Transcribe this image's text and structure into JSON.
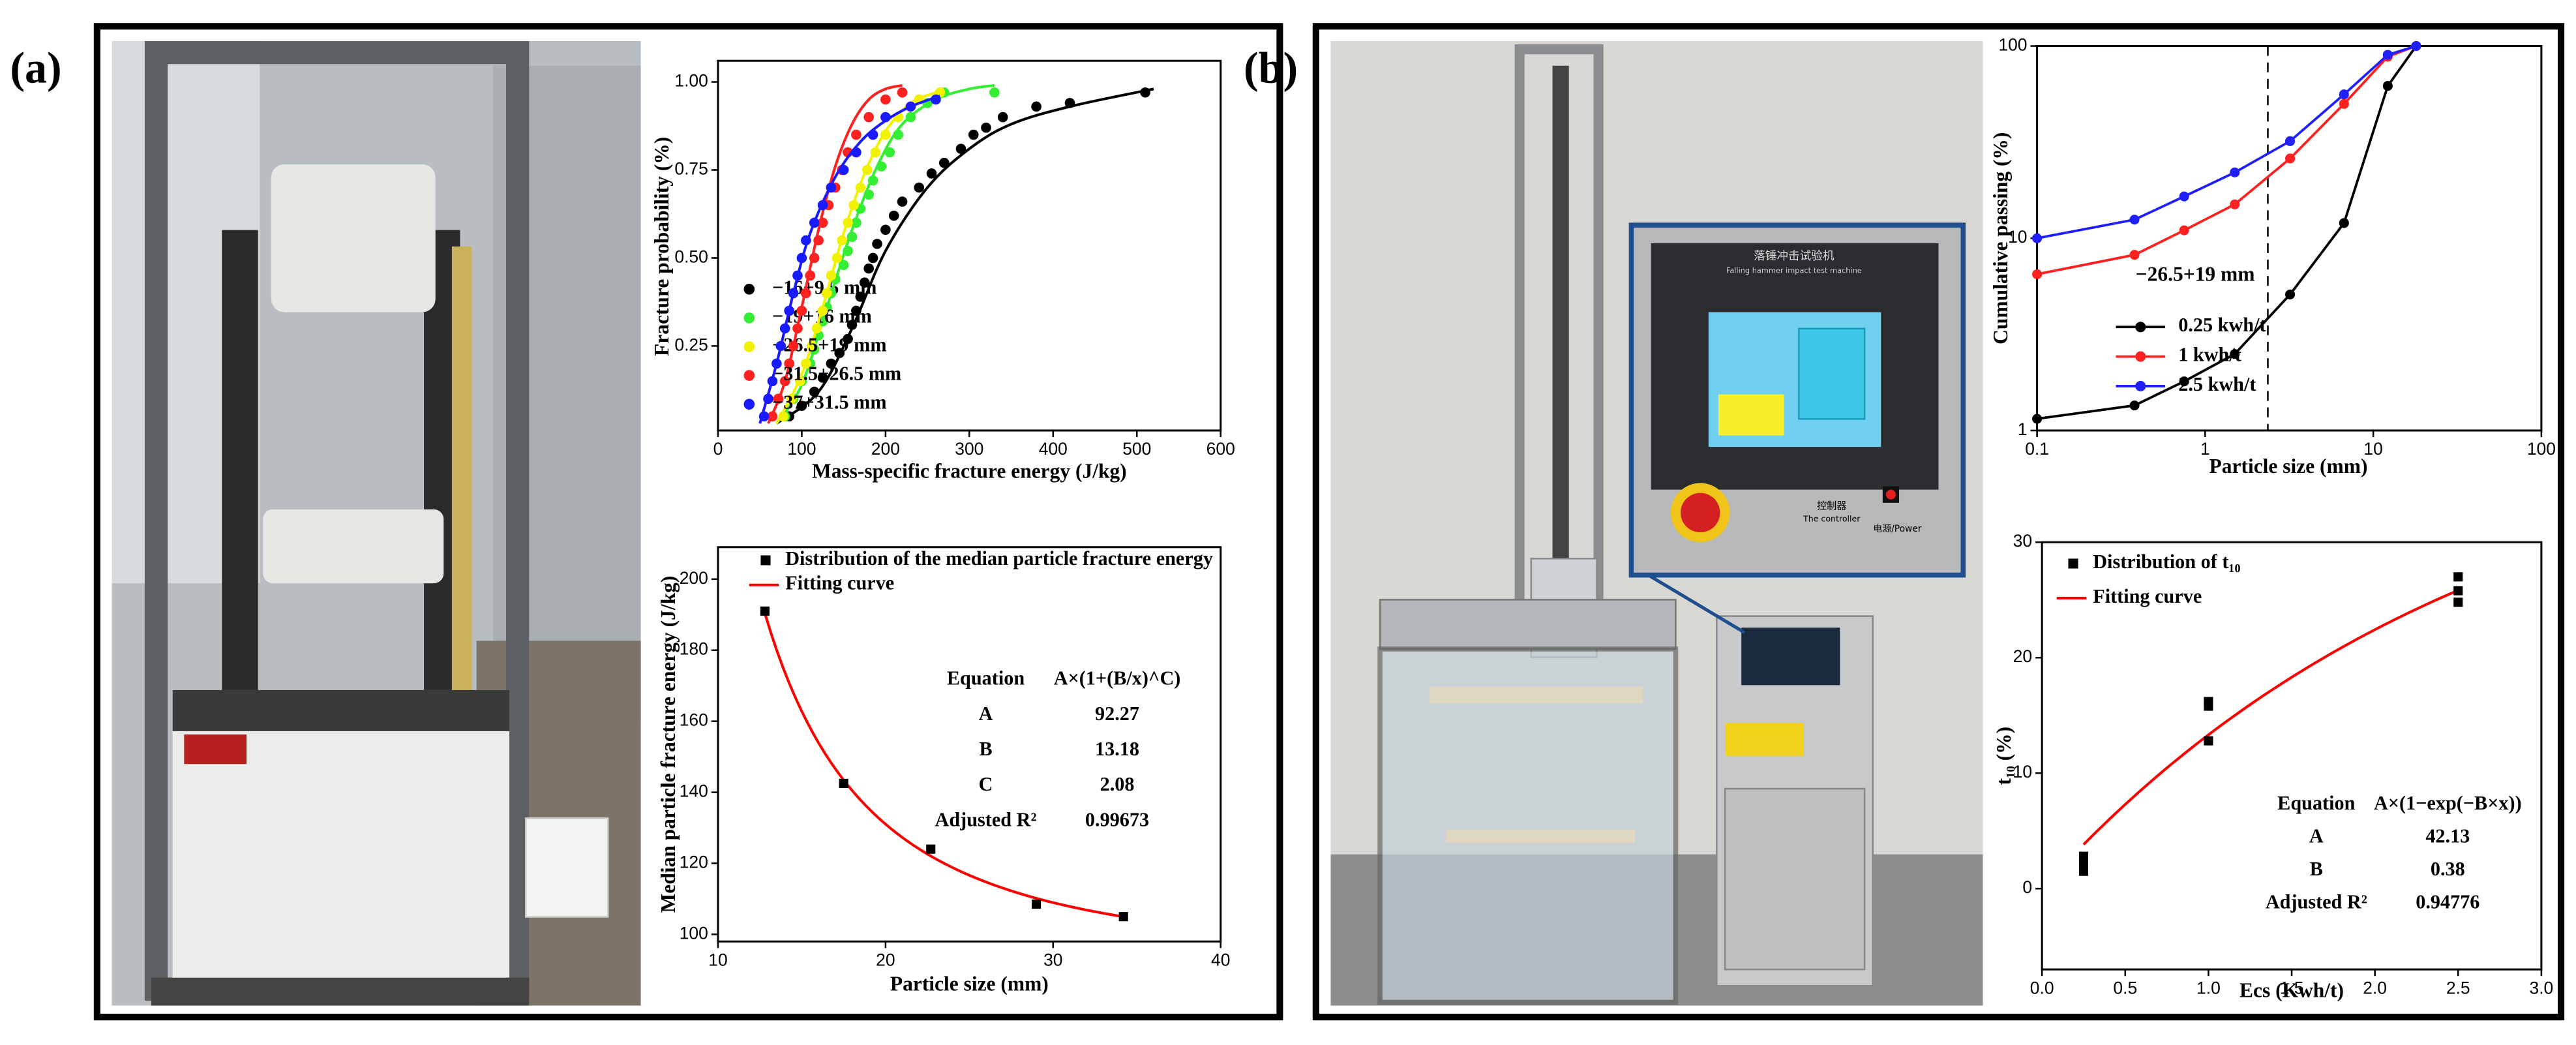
{
  "panel_labels": [
    "(a)",
    "(b)"
  ],
  "photo_b": {
    "machine_title": "落锤冲击试验机",
    "machine_subtitle": "Falling hammer impact test machine",
    "controller": "控制器",
    "controller_en": "The controller",
    "power": "电源/Power"
  },
  "chart_data": [
    {
      "type": "scatter",
      "x_label": "Mass-specific fracture energy (J/kg)",
      "y_label": "Fracture probability (%)",
      "xlim": [
        0,
        600
      ],
      "xticks": [
        0,
        100,
        200,
        300,
        400,
        500,
        600
      ],
      "ylim": [
        0.01,
        1.06
      ],
      "yticks": [
        0.25,
        {
          "value": 0.5,
          "label": "0.50"
        },
        0.75,
        {
          "value": 1,
          "label": "1.00"
        }
      ],
      "series": [
        {
          "name": "−16+9.5 mm",
          "color": "#000000",
          "x": [
            85,
            100,
            115,
            125,
            135,
            145,
            155,
            160,
            165,
            170,
            175,
            180,
            185,
            190,
            200,
            210,
            220,
            240,
            255,
            270,
            290,
            305,
            320,
            340,
            380,
            420,
            510
          ],
          "values": [
            0.05,
            0.08,
            0.12,
            0.16,
            0.2,
            0.23,
            0.27,
            0.31,
            0.35,
            0.39,
            0.43,
            0.47,
            0.5,
            0.54,
            0.58,
            0.62,
            0.66,
            0.7,
            0.74,
            0.77,
            0.81,
            0.85,
            0.87,
            0.9,
            0.93,
            0.94,
            0.97
          ],
          "fit": {
            "x": [
              70,
              120,
              160,
              200,
              250,
              300,
              350,
              420,
              520
            ],
            "values": [
              0.03,
              0.12,
              0.3,
              0.52,
              0.7,
              0.81,
              0.88,
              0.93,
              0.98
            ]
          }
        },
        {
          "name": "−19+16 mm",
          "color": "#33ee33",
          "x": [
            80,
            90,
            100,
            110,
            115,
            120,
            125,
            130,
            135,
            140,
            150,
            155,
            160,
            165,
            170,
            180,
            185,
            195,
            205,
            215,
            230,
            250,
            270,
            330
          ],
          "values": [
            0.05,
            0.1,
            0.15,
            0.2,
            0.24,
            0.28,
            0.32,
            0.36,
            0.4,
            0.44,
            0.48,
            0.52,
            0.56,
            0.6,
            0.64,
            0.68,
            0.72,
            0.76,
            0.8,
            0.85,
            0.9,
            0.94,
            0.97,
            0.97
          ],
          "fit": {
            "x": [
              70,
              100,
              130,
              160,
              190,
              220,
              260,
              300,
              330
            ],
            "values": [
              0.03,
              0.14,
              0.36,
              0.58,
              0.76,
              0.88,
              0.95,
              0.98,
              0.99
            ]
          }
        },
        {
          "name": "−26.5+19 mm",
          "color": "#f2f200",
          "x": [
            78,
            88,
            98,
            105,
            112,
            118,
            125,
            130,
            135,
            142,
            148,
            155,
            162,
            170,
            178,
            188,
            200,
            215,
            240,
            265
          ],
          "values": [
            0.05,
            0.1,
            0.15,
            0.2,
            0.25,
            0.3,
            0.35,
            0.4,
            0.45,
            0.5,
            0.55,
            0.6,
            0.65,
            0.7,
            0.75,
            0.8,
            0.85,
            0.9,
            0.95,
            0.97
          ],
          "fit": {
            "x": [
              70,
              100,
              125,
              150,
              175,
              200,
              230,
              260,
              270
            ],
            "values": [
              0.03,
              0.17,
              0.36,
              0.57,
              0.74,
              0.86,
              0.94,
              0.97,
              0.98
            ]
          }
        },
        {
          "name": "−31.5+26.5 mm",
          "color": "#ff2020",
          "x": [
            65,
            72,
            80,
            85,
            90,
            95,
            100,
            105,
            110,
            115,
            120,
            125,
            132,
            140,
            148,
            155,
            165,
            180,
            200,
            220
          ],
          "values": [
            0.05,
            0.1,
            0.15,
            0.2,
            0.25,
            0.3,
            0.35,
            0.4,
            0.45,
            0.5,
            0.55,
            0.6,
            0.65,
            0.7,
            0.75,
            0.8,
            0.85,
            0.9,
            0.95,
            0.97
          ],
          "fit": {
            "x": [
              60,
              80,
              100,
              120,
              140,
              160,
              180,
              200,
              220
            ],
            "values": [
              0.03,
              0.15,
              0.36,
              0.58,
              0.76,
              0.88,
              0.95,
              0.98,
              0.99
            ]
          }
        },
        {
          "name": "−37+31.5 mm",
          "color": "#1a1aff",
          "x": [
            55,
            60,
            65,
            70,
            75,
            80,
            85,
            90,
            95,
            100,
            105,
            115,
            125,
            135,
            150,
            165,
            185,
            200,
            230,
            260
          ],
          "values": [
            0.05,
            0.1,
            0.15,
            0.2,
            0.25,
            0.3,
            0.35,
            0.4,
            0.45,
            0.5,
            0.55,
            0.6,
            0.65,
            0.7,
            0.75,
            0.8,
            0.85,
            0.9,
            0.93,
            0.95
          ],
          "fit": {
            "x": [
              50,
              70,
              90,
              110,
              140,
              170,
              200,
              230,
              265
            ],
            "values": [
              0.03,
              0.2,
              0.4,
              0.57,
              0.73,
              0.83,
              0.89,
              0.93,
              0.96
            ]
          }
        }
      ]
    },
    {
      "type": "scatter",
      "x_label": "Particle size (mm)",
      "y_label": "Median particle fracture energy (J/kg)",
      "xlim": [
        10,
        40
      ],
      "xticks": [
        10,
        20,
        30,
        40
      ],
      "ylim": [
        98,
        209
      ],
      "yticks": [
        100,
        120,
        140,
        160,
        180,
        200
      ],
      "series": [
        {
          "name": "Distribution of the median particle fracture energy",
          "color": "#000000",
          "x": [
            12.8,
            17.5,
            22.7,
            29,
            34.2
          ],
          "values": [
            191,
            142.5,
            124,
            108.5,
            105
          ]
        }
      ],
      "fit": {
        "name": "Fitting curve",
        "color": "#ff0000"
      },
      "table": {
        "header": [
          "Equation",
          "A×(1+(B/x)^C)"
        ],
        "rows": [
          [
            "A",
            92.27
          ],
          [
            "B",
            13.18
          ],
          [
            "C",
            2.08
          ],
          [
            "Adjusted R²",
            0.99673
          ]
        ]
      }
    },
    {
      "type": "line",
      "x_label": "Particle size (mm)",
      "y_label": "Cumulative passing (%)",
      "xscale": "log",
      "yscale": "log",
      "xlim": [
        0.1,
        100
      ],
      "xticks": [
        0.1,
        1,
        10,
        100
      ],
      "ylim": [
        1,
        100
      ],
      "yticks": [
        1,
        10,
        100
      ],
      "annotation": "−26.5+19 mm",
      "vline": 2.36,
      "x": [
        0.1,
        0.38,
        0.75,
        1.5,
        3.2,
        6.7,
        12.2,
        18
      ],
      "series": [
        {
          "name": "0.25 kwh/t",
          "color": "#000000",
          "values": [
            1.15,
            1.35,
            1.8,
            2.5,
            5.1,
            12,
            62,
            100
          ]
        },
        {
          "name": "1 kwh/t",
          "color": "#ff2020",
          "values": [
            6.5,
            8.2,
            11,
            15,
            26,
            50,
            88,
            100
          ]
        },
        {
          "name": "2.5 kwh/t",
          "color": "#2020ff",
          "values": [
            10,
            12.5,
            16.5,
            22,
            32,
            56,
            90,
            100
          ]
        }
      ]
    },
    {
      "type": "scatter",
      "x_label": "Ecs (Kwh/t)",
      "y_label": "t₁₀ (%)",
      "xlim": [
        0,
        3
      ],
      "xticks": [
        {
          "value": 0,
          "label": "0.0"
        },
        0.5,
        {
          "value": 1,
          "label": "1.0"
        },
        1.5,
        {
          "value": 2,
          "label": "2.0"
        },
        2.5,
        {
          "value": 3,
          "label": "3.0"
        }
      ],
      "ylim": [
        -7,
        30
      ],
      "yticks": [
        0,
        10,
        20,
        30
      ],
      "series": [
        {
          "name": "Distribution of t₁₀",
          "color": "#000000",
          "x": [
            0.25,
            0.25,
            0.25,
            1,
            1,
            1,
            2.5,
            2.5,
            2.5
          ],
          "values": [
            1.5,
            2.2,
            2.8,
            12.8,
            15.8,
            16.2,
            24.8,
            25.8,
            27
          ]
        }
      ],
      "fit": {
        "name": "Fitting curve",
        "color": "#ff0000"
      },
      "table": {
        "header": [
          "Equation",
          "A×(1−exp(−B×x))"
        ],
        "rows": [
          [
            "A",
            42.13
          ],
          [
            "B",
            0.38
          ],
          [
            "Adjusted R²",
            0.94776
          ]
        ]
      }
    }
  ]
}
